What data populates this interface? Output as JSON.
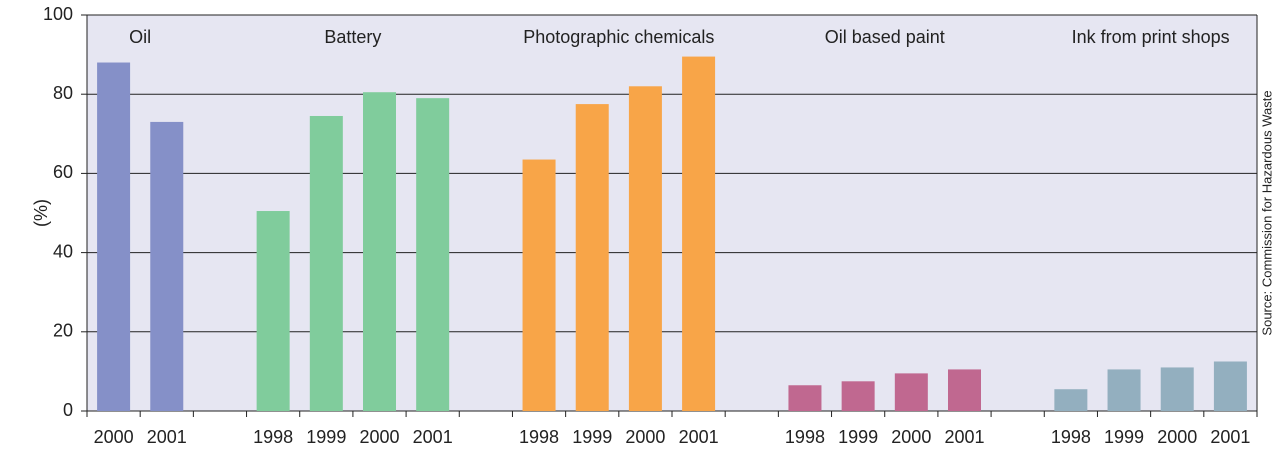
{
  "chart_data": {
    "type": "bar",
    "y_label": "(%)",
    "source": "Source: Commission for Hazardous Waste",
    "categories": [
      "2000",
      "2001",
      null,
      "1998",
      "1999",
      "2000",
      "2001",
      null,
      "1998",
      "1999",
      "2000",
      "2001",
      null,
      "1998",
      "1999",
      "2000",
      "2001",
      null,
      "1998",
      "1999",
      "2000",
      "2001"
    ],
    "series": [
      {
        "name": "Oil",
        "color": "#8590c8",
        "values": [
          88,
          73,
          null,
          null,
          null,
          null,
          null,
          null,
          null,
          null,
          null,
          null,
          null,
          null,
          null,
          null,
          null,
          null,
          null,
          null,
          null,
          null
        ]
      },
      {
        "name": "Battery",
        "color": "#80cc9c",
        "values": [
          null,
          null,
          null,
          50.5,
          74.5,
          80.5,
          79,
          null,
          null,
          null,
          null,
          null,
          null,
          null,
          null,
          null,
          null,
          null,
          null,
          null,
          null,
          null
        ]
      },
      {
        "name": "Photographic chemicals",
        "color": "#f8a548",
        "values": [
          null,
          null,
          null,
          null,
          null,
          null,
          null,
          null,
          63.5,
          77.5,
          82,
          89.5,
          null,
          null,
          null,
          null,
          null,
          null,
          null,
          null,
          null,
          null
        ]
      },
      {
        "name": "Oil based paint",
        "color": "#c06890",
        "values": [
          null,
          null,
          null,
          null,
          null,
          null,
          null,
          null,
          null,
          null,
          null,
          null,
          null,
          6.5,
          7.5,
          9.5,
          10.5,
          null,
          null,
          null,
          null,
          null
        ]
      },
      {
        "name": "Ink from print shops",
        "color": "#93afbf",
        "values": [
          null,
          null,
          null,
          null,
          null,
          null,
          null,
          null,
          null,
          null,
          null,
          null,
          null,
          null,
          null,
          null,
          null,
          null,
          5.5,
          10.5,
          11,
          12.5
        ]
      }
    ],
    "ylim": [
      0,
      100
    ],
    "yticks": [
      0,
      20,
      40,
      60,
      80,
      100
    ],
    "grid": true
  }
}
